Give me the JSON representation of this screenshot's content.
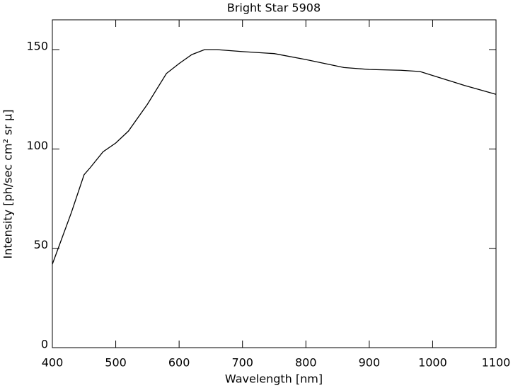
{
  "chart_data": {
    "type": "line",
    "title": "Bright Star 5908",
    "x_label": "Wavelength [nm]",
    "y_label": "Intensity [ph/sec cm² sr μ]",
    "x": [
      400,
      430,
      450,
      460,
      480,
      500,
      520,
      550,
      580,
      600,
      620,
      640,
      660,
      700,
      750,
      800,
      830,
      860,
      900,
      950,
      980,
      1000,
      1050,
      1100
    ],
    "series": [
      {
        "name": "Bright Star 5908",
        "color": "#000000",
        "values": [
          42,
          68,
          87,
          90.7,
          98.6,
          103,
          109,
          122.5,
          138,
          143,
          147.5,
          150,
          150,
          149,
          148,
          145,
          143,
          141,
          140,
          139.6,
          139,
          137,
          132,
          127.5
        ]
      }
    ],
    "xlim": [
      400,
      1100
    ],
    "xticks": [
      400,
      500,
      600,
      700,
      800,
      900,
      1000,
      1100
    ],
    "ylim": [
      0,
      165
    ],
    "yticks": [
      0,
      50,
      100,
      150
    ],
    "grid": false
  }
}
